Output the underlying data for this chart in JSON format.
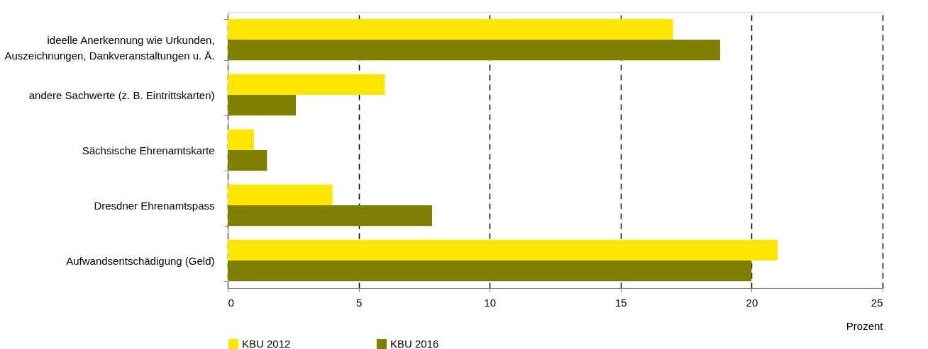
{
  "chart_data": {
    "type": "bar",
    "orientation": "horizontal",
    "categories": [
      "ideelle Anerkennung wie Urkunden,\nAuszeichnungen, Dankveranstaltungen u. Ä.",
      "andere Sachwerte (z. B. Eintrittskarten)",
      "Sächsische Ehrenamtskarte",
      "Dresdner Ehrenamtspass",
      "Aufwandsentschädigung (Geld)"
    ],
    "series": [
      {
        "name": "KBU 2012",
        "color": "#ffe600",
        "values": [
          17.0,
          6.0,
          1.0,
          4.0,
          21.0
        ]
      },
      {
        "name": "KBU 2016",
        "color": "#808000",
        "values": [
          18.8,
          2.6,
          1.5,
          7.8,
          20.0
        ]
      }
    ],
    "xlabel": "Prozent",
    "xlim": [
      0,
      25
    ],
    "xticks": [
      0,
      5,
      10,
      15,
      20,
      25
    ],
    "grid": "x",
    "legend": "bottom"
  }
}
